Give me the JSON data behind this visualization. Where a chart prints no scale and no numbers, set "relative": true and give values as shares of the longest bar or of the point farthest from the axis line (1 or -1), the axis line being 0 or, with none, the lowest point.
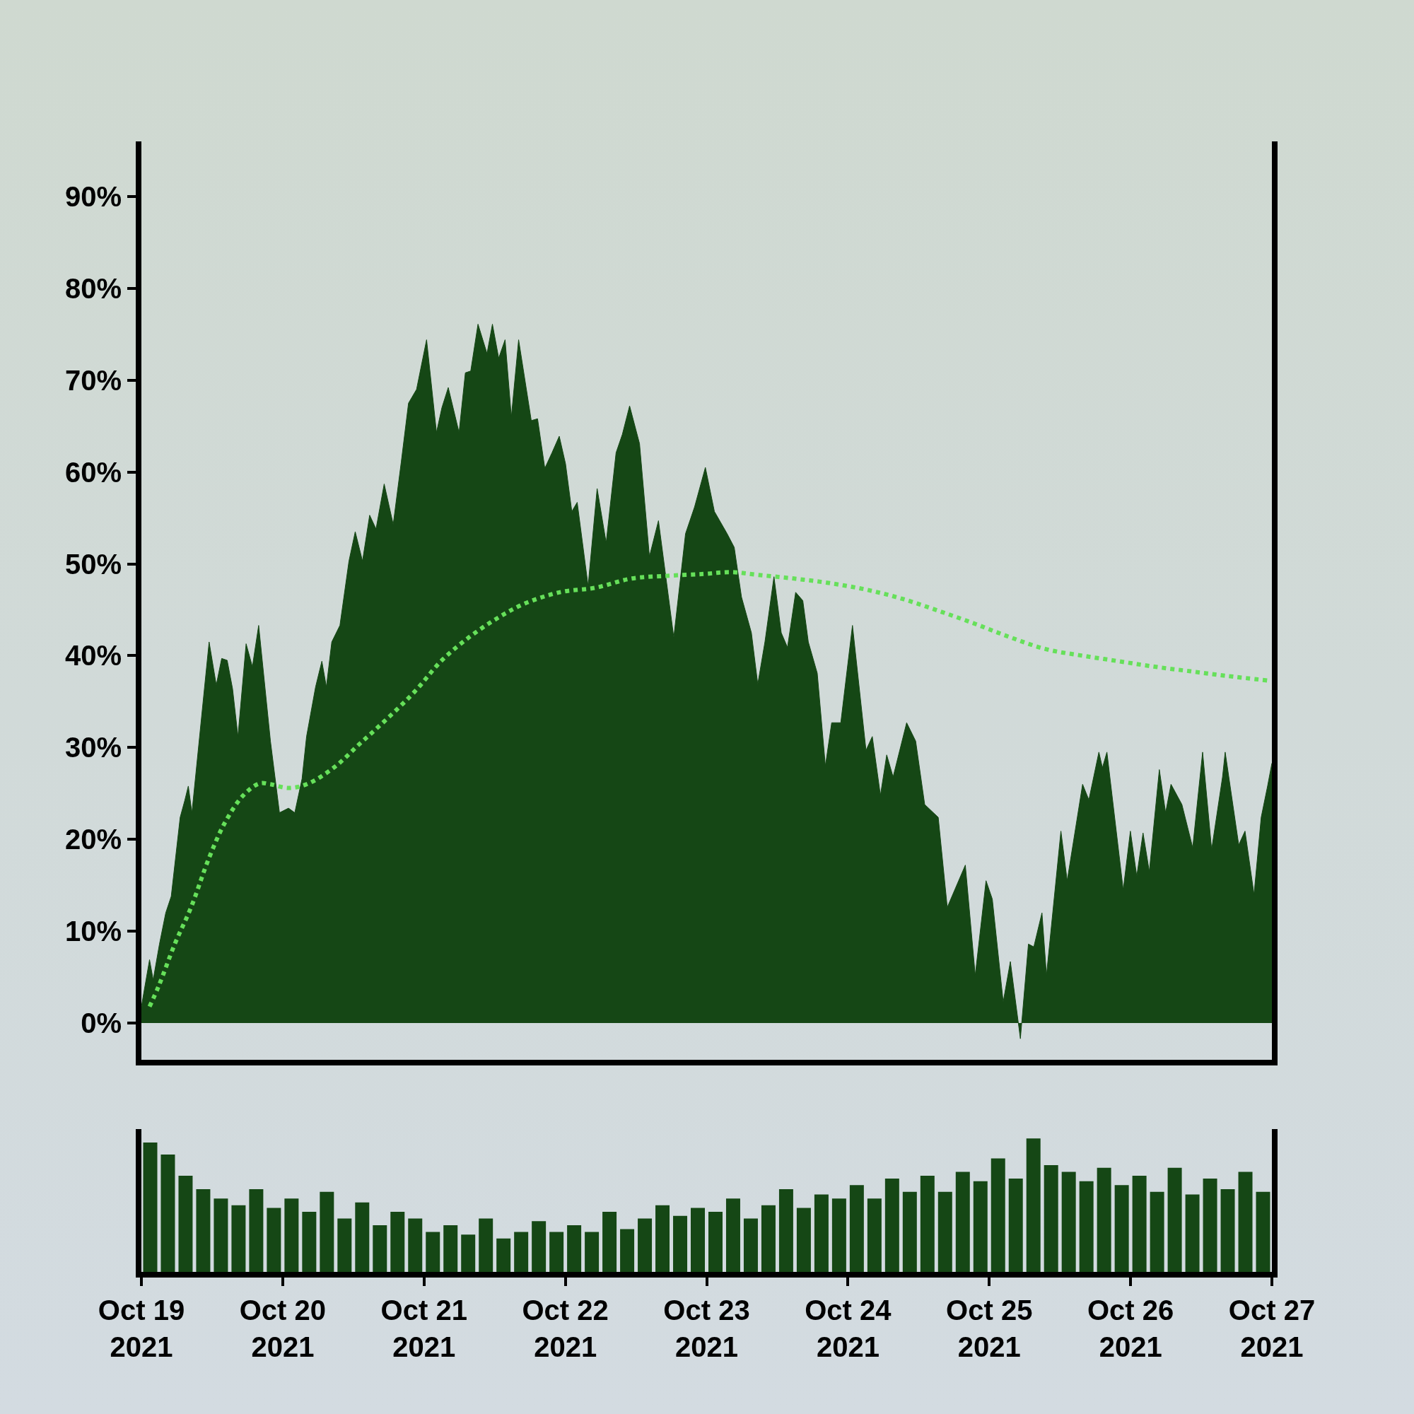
{
  "chart_data": [
    {
      "type": "area",
      "xlim": [
        "2021-10-19",
        "2021-10-27"
      ],
      "ylim": [
        -4,
        96
      ],
      "tick_labels": "y",
      "yticks": [
        {
          "value": 0,
          "label": "0%"
        },
        {
          "value": 10,
          "label": "10%"
        },
        {
          "value": 20,
          "label": "20%"
        },
        {
          "value": 30,
          "label": "30%"
        },
        {
          "value": 40,
          "label": "40%"
        },
        {
          "value": 50,
          "label": "50%"
        },
        {
          "value": 60,
          "label": "60%"
        },
        {
          "value": 70,
          "label": "70%"
        },
        {
          "value": 80,
          "label": "80%"
        },
        {
          "value": 90,
          "label": "90%"
        }
      ],
      "series": [
        {
          "color": "#154715",
          "x": [
            "2021-10-19T00:00",
            "2021-10-19T01:23",
            "2021-10-19T02:00",
            "2021-10-19T03:04",
            "2021-10-19T04:08",
            "2021-10-19T05:04",
            "2021-10-19T06:35",
            "2021-10-19T07:21",
            "2021-10-19T07:58",
            "2021-10-19T08:35",
            "2021-10-19T11:30",
            "2021-10-19T12:43",
            "2021-10-19T13:38",
            "2021-10-19T14:34",
            "2021-10-19T15:29",
            "2021-10-19T16:24",
            "2021-10-19T17:47",
            "2021-10-19T18:51",
            "2021-10-19T19:55",
            "2021-10-19T21:55",
            "2021-10-19T23:27",
            "2021-10-20T00:59",
            "2021-10-20T02:03",
            "2021-10-20T03:17",
            "2021-10-20T04:03",
            "2021-10-20T05:35",
            "2021-10-20T06:39",
            "2021-10-20T07:25",
            "2021-10-20T08:20",
            "2021-10-20T09:43",
            "2021-10-20T11:15",
            "2021-10-20T12:19",
            "2021-10-20T13:33",
            "2021-10-20T14:46",
            "2021-10-20T15:51",
            "2021-10-20T17:14",
            "2021-10-20T18:46",
            "2021-10-20T20:08",
            "2021-10-20T21:22",
            "2021-10-20T22:44",
            "2021-10-21T00:26",
            "2021-10-21T02:07",
            "2021-10-21T03:02",
            "2021-10-21T04:07",
            "2021-10-21T05:57",
            "2021-10-21T07:01",
            "2021-10-21T07:56",
            "2021-10-21T09:10",
            "2021-10-21T10:42",
            "2021-10-21T11:37",
            "2021-10-21T12:41",
            "2021-10-21T13:46",
            "2021-10-21T14:50",
            "2021-10-21T16:04",
            "2021-10-21T18:13",
            "2021-10-21T19:17",
            "2021-10-21T20:31",
            "2021-10-21T21:44",
            "2021-10-21T22:58",
            "2021-10-22T00:02",
            "2021-10-22T01:06",
            "2021-10-22T02:01",
            "2021-10-22T03:52",
            "2021-10-22T05:24",
            "2021-10-22T06:56",
            "2021-10-22T08:37",
            "2021-10-22T09:41",
            "2021-10-22T10:55",
            "2021-10-22T12:36",
            "2021-10-22T14:17",
            "2021-10-22T15:49",
            "2021-10-22T18:25",
            "2021-10-22T20:25",
            "2021-10-22T21:57",
            "2021-10-22T23:47",
            "2021-10-23T01:19",
            "2021-10-23T03:28",
            "2021-10-23T04:41",
            "2021-10-23T05:55",
            "2021-10-23T07:36",
            "2021-10-23T08:41",
            "2021-10-23T09:54",
            "2021-10-23T11:26",
            "2021-10-23T12:40",
            "2021-10-23T13:44",
            "2021-10-23T15:07",
            "2021-10-23T16:20",
            "2021-10-23T17:16",
            "2021-10-23T18:47",
            "2021-10-23T20:10",
            "2021-10-23T21:14",
            "2021-10-23T22:47",
            "2021-10-24T00:46",
            "2021-10-24T03:04",
            "2021-10-24T04:08",
            "2021-10-24T05:31",
            "2021-10-24T06:35",
            "2021-10-24T07:40",
            "2021-10-24T09:58",
            "2021-10-24T11:30",
            "2021-10-24T13:02",
            "2021-10-24T15:20",
            "2021-10-24T16:52",
            "2021-10-24T19:56",
            "2021-10-24T21:37",
            "2021-10-24T23:27",
            "2021-10-25T00:31",
            "2021-10-25T02:22",
            "2021-10-25T03:35",
            "2021-10-25T05:17",
            "2021-10-25T06:39",
            "2021-10-25T07:34",
            "2021-10-25T08:57",
            "2021-10-25T09:43",
            "2021-10-25T12:10",
            "2021-10-25T13:14",
            "2021-10-25T15:51",
            "2021-10-25T16:55",
            "2021-10-25T18:37",
            "2021-10-25T19:13",
            "2021-10-25T19:59",
            "2021-10-25T22:45",
            "2021-10-25T23:58",
            "2021-10-26T01:03",
            "2021-10-26T02:07",
            "2021-10-26T03:11",
            "2021-10-26T04:53",
            "2021-10-26T05:57",
            "2021-10-26T06:52",
            "2021-10-26T08:43",
            "2021-10-26T10:33",
            "2021-10-26T12:14",
            "2021-10-26T13:46",
            "2021-10-26T15:37",
            "2021-10-26T16:04",
            "2021-10-26T18:22",
            "2021-10-26T19:26",
            "2021-10-26T20:58",
            "2021-10-26T22:11",
            "2021-10-26T23:16",
            "2021-10-27T00:00"
          ],
          "values": [
            1.8,
            6.9,
            4.7,
            8.6,
            12,
            13.8,
            22.4,
            24.2,
            25.8,
            22.9,
            41.5,
            36.8,
            39.7,
            39.5,
            36.4,
            31.2,
            41.3,
            38.8,
            43.3,
            30.7,
            22.9,
            23.4,
            22.9,
            26.6,
            31.2,
            36.6,
            39.4,
            36.6,
            41.5,
            43.3,
            50.3,
            53.5,
            50.3,
            55.3,
            53.8,
            58.7,
            54.3,
            61.1,
            67.5,
            69,
            74.4,
            64.3,
            67,
            69.2,
            64.3,
            70.8,
            71,
            76.1,
            72.9,
            76.1,
            72.4,
            74.4,
            66,
            74.4,
            65.6,
            65.8,
            60.4,
            62.1,
            63.9,
            60.9,
            55.7,
            56.7,
            47.6,
            58.2,
            52.3,
            62.1,
            64.1,
            67.2,
            63.1,
            50.8,
            54.7,
            42,
            53.3,
            56.2,
            60.5,
            55.7,
            53.3,
            51.8,
            46.4,
            42.5,
            36.9,
            41.5,
            48.6,
            42.5,
            40.9,
            46.9,
            46,
            41.5,
            38.1,
            28,
            32.7,
            32.7,
            43.3,
            29.7,
            31.2,
            24.8,
            29.2,
            26.8,
            32.7,
            30.7,
            23.8,
            22.4,
            12.6,
            17.2,
            5.2,
            15.5,
            13.5,
            2.3,
            6.7,
            -1.7,
            8.6,
            8.3,
            12,
            5.2,
            20.9,
            15.5,
            26,
            24.3,
            29.5,
            27.8,
            29.5,
            14.5,
            20.9,
            16,
            20.7,
            16.5,
            27.6,
            22.9,
            26,
            23.8,
            19.1,
            29.5,
            18.9,
            26.8,
            29.5,
            19.4,
            20.9,
            14,
            22.4,
            25.8,
            28.3
          ]
        },
        {
          "type": "line",
          "color": "#66e05a",
          "line_style": "dotted",
          "x": [
            "2021-10-19T01:23",
            "2021-10-19T02:55",
            "2021-10-19T05:40",
            "2021-10-19T08:26",
            "2021-10-19T11:30",
            "2021-10-19T14:15",
            "2021-10-19T17:19",
            "2021-10-19T20:05",
            "2021-10-19T21:55",
            "2021-10-20T00:59",
            "2021-10-20T04:03",
            "2021-10-20T08:39",
            "2021-10-20T13:14",
            "2021-10-20T17:50",
            "2021-10-20T22:26",
            "2021-10-21T03:02",
            "2021-10-21T07:38",
            "2021-10-21T12:14",
            "2021-10-21T16:50",
            "2021-10-21T22:58",
            "2021-10-22T05:05",
            "2021-10-22T11:13",
            "2021-10-22T17:21",
            "2021-10-22T23:29",
            "2021-10-23T04:05",
            "2021-10-23T08:41",
            "2021-10-23T14:49",
            "2021-10-23T20:56",
            "2021-10-24T03:04",
            "2021-10-24T09:12",
            "2021-10-24T15:20",
            "2021-10-24T21:28",
            "2021-10-25T03:35",
            "2021-10-25T09:43",
            "2021-10-25T15:51",
            "2021-10-25T21:59",
            "2021-10-26T04:07",
            "2021-10-26T10:14",
            "2021-10-26T16:22",
            "2021-10-26T23:16"
          ],
          "values": [
            1.8,
            4,
            8.6,
            12.6,
            18,
            21.9,
            24.8,
            26.1,
            26,
            25.6,
            26,
            27.8,
            30.5,
            33.2,
            36.1,
            39.5,
            42,
            44,
            45.6,
            46.9,
            47.4,
            48.4,
            48.7,
            48.9,
            49.1,
            48.8,
            48.4,
            47.9,
            47.2,
            46.2,
            44.9,
            43.5,
            42,
            40.7,
            40,
            39.4,
            38.8,
            38.3,
            37.8,
            37.3
          ]
        }
      ]
    },
    {
      "type": "bar",
      "relative": true,
      "color": "#154715",
      "tick_labels": "x",
      "xlim": [
        "2021-10-19",
        "2021-10-27"
      ],
      "xticks": [
        {
          "value": "2021-10-19",
          "label": "Oct 19\n2021"
        },
        {
          "value": "2021-10-20",
          "label": "Oct 20\n2021"
        },
        {
          "value": "2021-10-21",
          "label": "Oct 21\n2021"
        },
        {
          "value": "2021-10-22",
          "label": "Oct 22\n2021"
        },
        {
          "value": "2021-10-23",
          "label": "Oct 23\n2021"
        },
        {
          "value": "2021-10-24",
          "label": "Oct 24\n2021"
        },
        {
          "value": "2021-10-25",
          "label": "Oct 25\n2021"
        },
        {
          "value": "2021-10-26",
          "label": "Oct 26\n2021"
        },
        {
          "value": "2021-10-27",
          "label": "Oct 27\n2021"
        }
      ],
      "x": [
        "2021-10-19T01:30",
        "2021-10-19T04:30",
        "2021-10-19T07:30",
        "2021-10-19T10:30",
        "2021-10-19T13:30",
        "2021-10-19T16:30",
        "2021-10-19T19:30",
        "2021-10-19T22:30",
        "2021-10-20T01:30",
        "2021-10-20T04:30",
        "2021-10-20T07:30",
        "2021-10-20T10:30",
        "2021-10-20T13:30",
        "2021-10-20T16:30",
        "2021-10-20T19:30",
        "2021-10-20T22:30",
        "2021-10-21T01:30",
        "2021-10-21T04:30",
        "2021-10-21T07:30",
        "2021-10-21T10:30",
        "2021-10-21T13:30",
        "2021-10-21T16:30",
        "2021-10-21T19:30",
        "2021-10-21T22:30",
        "2021-10-22T01:30",
        "2021-10-22T04:30",
        "2021-10-22T07:30",
        "2021-10-22T10:30",
        "2021-10-22T13:30",
        "2021-10-22T16:30",
        "2021-10-22T19:30",
        "2021-10-22T22:30",
        "2021-10-23T01:30",
        "2021-10-23T04:30",
        "2021-10-23T07:30",
        "2021-10-23T10:30",
        "2021-10-23T13:30",
        "2021-10-23T16:30",
        "2021-10-23T19:30",
        "2021-10-23T22:30",
        "2021-10-24T01:30",
        "2021-10-24T04:30",
        "2021-10-24T07:30",
        "2021-10-24T10:30",
        "2021-10-24T13:30",
        "2021-10-24T16:30",
        "2021-10-24T19:30",
        "2021-10-24T22:30",
        "2021-10-25T01:30",
        "2021-10-25T04:30",
        "2021-10-25T07:30",
        "2021-10-25T10:30",
        "2021-10-25T13:30",
        "2021-10-25T16:30",
        "2021-10-25T19:30",
        "2021-10-25T22:30",
        "2021-10-26T01:30",
        "2021-10-26T04:30",
        "2021-10-26T07:30",
        "2021-10-26T10:30",
        "2021-10-26T13:30",
        "2021-10-26T16:30",
        "2021-10-26T19:30",
        "2021-10-26T22:30"
      ],
      "values": [
        0.97,
        0.88,
        0.72,
        0.62,
        0.55,
        0.5,
        0.62,
        0.48,
        0.55,
        0.45,
        0.6,
        0.4,
        0.52,
        0.35,
        0.45,
        0.4,
        0.3,
        0.35,
        0.28,
        0.4,
        0.25,
        0.3,
        0.38,
        0.3,
        0.35,
        0.3,
        0.45,
        0.32,
        0.4,
        0.5,
        0.42,
        0.48,
        0.45,
        0.55,
        0.4,
        0.5,
        0.62,
        0.48,
        0.58,
        0.55,
        0.65,
        0.55,
        0.7,
        0.6,
        0.72,
        0.6,
        0.75,
        0.68,
        0.85,
        0.7,
        1,
        0.8,
        0.75,
        0.68,
        0.78,
        0.65,
        0.72,
        0.6,
        0.78,
        0.58,
        0.7,
        0.62,
        0.75,
        0.6
      ]
    }
  ]
}
